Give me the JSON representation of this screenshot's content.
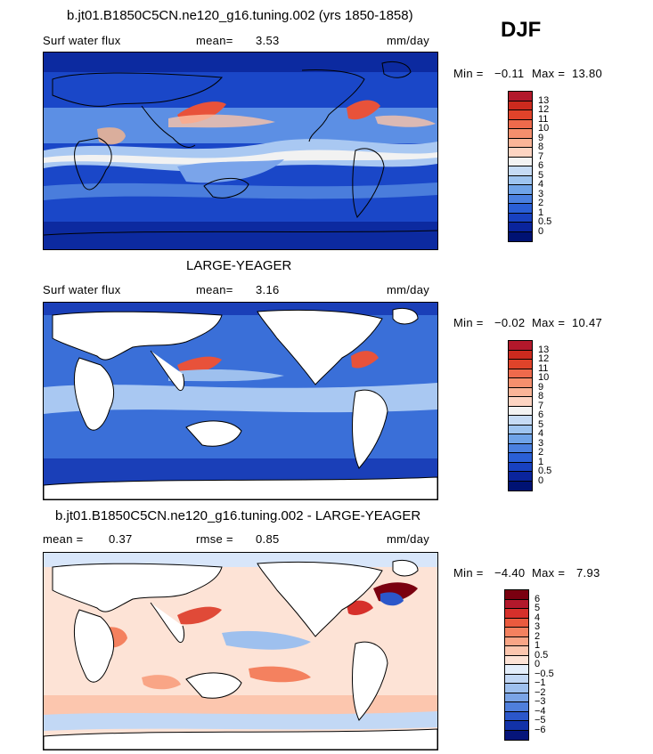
{
  "panels": [
    {
      "title": "b.jt01.B1850C5CN.ne120_g16.tuning.002 (yrs 1850-1858)",
      "left_label": "Surf water flux",
      "stat1_label": "mean=",
      "stat1_value": "3.53",
      "units": "mm/day",
      "min_label": "Min =",
      "min_value": "−0.11",
      "max_label": "Max =",
      "max_value": "13.80",
      "colorbar_labels": [
        "13",
        "12",
        "11",
        "10",
        "9",
        "8",
        "7",
        "6",
        "5",
        "4",
        "3",
        "2",
        "1",
        "0.5",
        "0"
      ],
      "colorbar_colors": [
        "#b2182b",
        "#cc2a1e",
        "#e0432a",
        "#ee6a4c",
        "#f58f6d",
        "#fab497",
        "#fdd4c2",
        "#f3f3f3",
        "#c6dbf5",
        "#9ec4f0",
        "#6fa3e8",
        "#4a80e0",
        "#2a5fd6",
        "#1841c0",
        "#0a249c",
        "#001273"
      ]
    },
    {
      "title": "LARGE-YEAGER",
      "left_label": "Surf water flux",
      "stat1_label": "mean=",
      "stat1_value": "3.16",
      "units": "mm/day",
      "min_label": "Min =",
      "min_value": "−0.02",
      "max_label": "Max =",
      "max_value": "10.47",
      "colorbar_labels": [
        "13",
        "12",
        "11",
        "10",
        "9",
        "8",
        "7",
        "6",
        "5",
        "4",
        "3",
        "2",
        "1",
        "0.5",
        "0"
      ],
      "colorbar_colors": [
        "#b2182b",
        "#cc2a1e",
        "#e0432a",
        "#ee6a4c",
        "#f58f6d",
        "#fab497",
        "#fdd4c2",
        "#f3f3f3",
        "#c6dbf5",
        "#9ec4f0",
        "#6fa3e8",
        "#4a80e0",
        "#2a5fd6",
        "#1841c0",
        "#0a249c",
        "#001273"
      ]
    },
    {
      "title": "b.jt01.B1850C5CN.ne120_g16.tuning.002 - LARGE-YEAGER",
      "left_label": "mean =",
      "stat1_value": "0.37",
      "stat2_label": "rmse =",
      "stat2_value": "0.85",
      "units": "mm/day",
      "min_label": "Min =",
      "min_value": "−4.40",
      "max_label": "Max =",
      "max_value": "7.93",
      "colorbar_labels": [
        "6",
        "5",
        "4",
        "3",
        "2",
        "1",
        "0.5",
        "0",
        "−0.5",
        "−1",
        "−2",
        "−3",
        "−4",
        "−5",
        "−6"
      ],
      "colorbar_colors": [
        "#7a0010",
        "#b2182b",
        "#d6302b",
        "#ea5a3e",
        "#f4815f",
        "#f9a586",
        "#fcc6ae",
        "#fde3d6",
        "#e3eefb",
        "#c2d8f5",
        "#9ec0ee",
        "#7aa4e6",
        "#4f7fdc",
        "#2b57ca",
        "#1232a8",
        "#06157a"
      ]
    }
  ],
  "season": "DJF"
}
